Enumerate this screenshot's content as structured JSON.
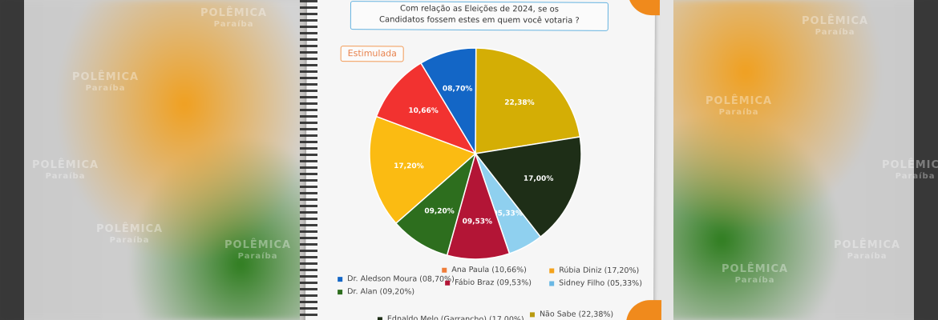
{
  "header": {
    "line1": "Com relação as Eleições de 2024, se os",
    "line2": "Candidatos fossem estes em quem você votaria ?"
  },
  "tag": {
    "label": "Estimulada"
  },
  "watermark": {
    "line1": "POLÊMICA",
    "line2": "Paraíba"
  },
  "chart_data": {
    "type": "pie",
    "title": "Com relação as Eleições de 2024, se os Candidatos fossem estes em quem você votaria ?",
    "subtitle": "Estimulada",
    "start_angle_deg": -90,
    "slices": [
      {
        "name": "Não Sabe",
        "value": 22.38,
        "label": "22,38%",
        "color": "#d4ae05",
        "legend": "Não Sabe (22,38%)"
      },
      {
        "name": "Ednaldo Melo (Garrancho)",
        "value": 17.0,
        "label": "17,00%",
        "color": "#1e2e17",
        "legend": "Ednaldo Melo (Garrancho) (17,00%)"
      },
      {
        "name": "Sidney Filho",
        "value": 5.33,
        "label": "05,33%",
        "color": "#8fd0ef",
        "legend": "Sidney Filho (05,33%)"
      },
      {
        "name": "Fábio Braz",
        "value": 9.53,
        "label": "09,53%",
        "color": "#b31536",
        "legend": "Fábio Braz (09,53%)"
      },
      {
        "name": "Dr. Alan",
        "value": 9.2,
        "label": "09,20%",
        "color": "#2d6e1e",
        "legend": "Dr. Alan (09,20%)"
      },
      {
        "name": "Rúbia Diniz",
        "value": 17.2,
        "label": "17,20%",
        "color": "#fbbb12",
        "legend": "Rúbia Diniz (17,20%)"
      },
      {
        "name": "Ana Paula",
        "value": 10.66,
        "label": "10,66%",
        "color": "#f23230",
        "legend": "Ana Paula (10,66%)"
      },
      {
        "name": "Dr. Aledson Moura",
        "value": 8.7,
        "label": "08,70%",
        "color": "#1366c6",
        "legend": "Dr. Aledson Moura (08,70%)"
      }
    ],
    "legend_order": [
      "Dr. Aledson Moura",
      "Ana Paula",
      "Rúbia Diniz",
      "Dr. Alan",
      "Fábio Braz",
      "Sidney Filho",
      "Ednaldo Melo (Garrancho)",
      "Não Sabe"
    ],
    "legend_colors": {
      "Dr. Aledson Moura": "#1366c6",
      "Ana Paula": "#ef7d3a",
      "Rúbia Diniz": "#f4a21c",
      "Dr. Alan": "#2d6e1e",
      "Fábio Braz": "#b31536",
      "Sidney Filho": "#6ab8e4",
      "Ednaldo Melo (Garrancho)": "#1e2e17",
      "Não Sabe": "#b99a10"
    }
  }
}
